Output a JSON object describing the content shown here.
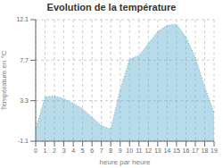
{
  "chart_data": {
    "type": "area",
    "title": "Evolution de la température",
    "x_label": "heure par heure",
    "y_label": "Température en °C",
    "x": [
      0,
      1,
      2,
      3,
      4,
      5,
      6,
      7,
      8,
      9,
      10,
      11,
      12,
      13,
      14,
      15,
      16,
      17,
      18,
      19
    ],
    "values": [
      0.2,
      3.7,
      3.8,
      3.5,
      3.0,
      2.4,
      1.5,
      0.6,
      0.2,
      4.5,
      7.8,
      8.2,
      9.5,
      10.8,
      11.5,
      11.6,
      10.2,
      8.0,
      4.8,
      2.0
    ],
    "color": "#60b0cc",
    "line_style": "dotted",
    "xlim": [
      0,
      19
    ],
    "xticks": [
      0,
      1,
      2,
      3,
      4,
      5,
      6,
      7,
      8,
      9,
      10,
      11,
      12,
      13,
      14,
      15,
      16,
      17,
      18,
      19
    ],
    "ylim": [
      -1.1,
      12.1
    ],
    "yticks": [
      -1.1,
      3.3,
      7.7,
      12.1
    ],
    "grid": true
  }
}
